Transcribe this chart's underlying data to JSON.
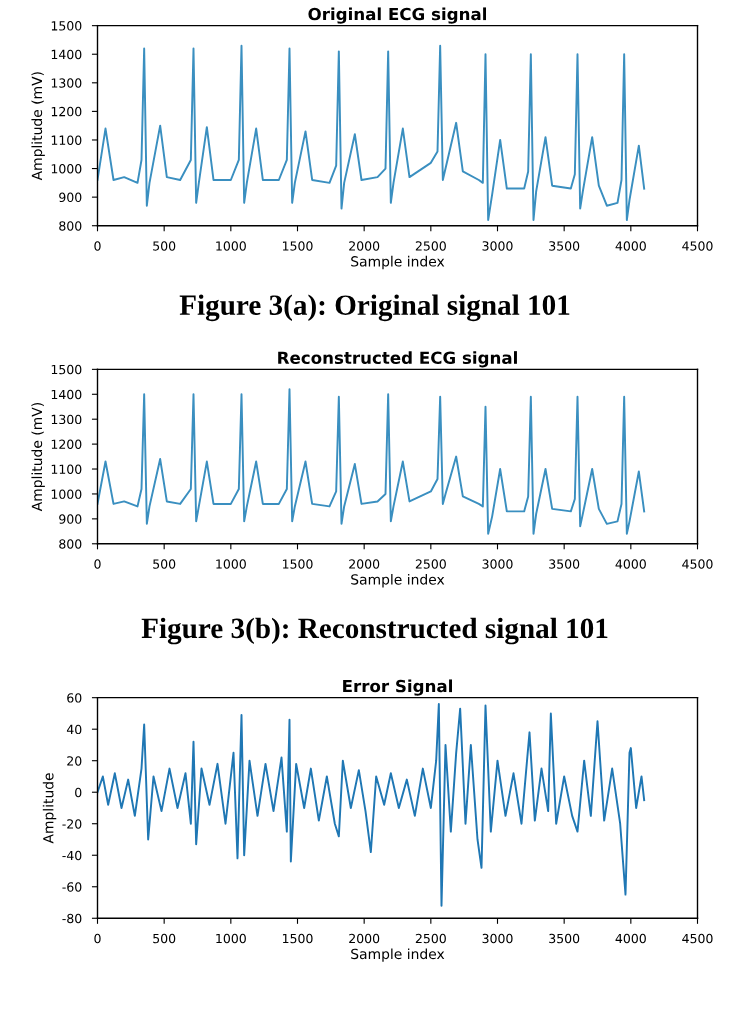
{
  "chart_data": [
    {
      "type": "line",
      "title": "Original ECG signal",
      "xlabel": "Sample index",
      "ylabel": "Amplitude (mV)",
      "annotations": [
        "Figure 3(a): Original signal 101"
      ],
      "xlim": [
        0,
        4500
      ],
      "xticks": [
        0,
        500,
        1000,
        1500,
        2000,
        2500,
        3000,
        3500,
        4000,
        4500
      ],
      "ylim": [
        800,
        1500
      ],
      "yticks": [
        800,
        900,
        1000,
        1100,
        1200,
        1300,
        1400,
        1500
      ],
      "grid": false,
      "series": [
        {
          "color": "#3a8fc0",
          "x": [
            0,
            60,
            120,
            200,
            300,
            330,
            350,
            370,
            390,
            470,
            520,
            620,
            700,
            720,
            740,
            760,
            820,
            870,
            1000,
            1060,
            1080,
            1100,
            1120,
            1190,
            1240,
            1360,
            1420,
            1440,
            1460,
            1480,
            1560,
            1610,
            1740,
            1790,
            1810,
            1830,
            1850,
            1930,
            1980,
            2100,
            2160,
            2180,
            2200,
            2220,
            2290,
            2340,
            2500,
            2550,
            2570,
            2590,
            2610,
            2690,
            2740,
            2860,
            2890,
            2910,
            2930,
            2960,
            3020,
            3070,
            3200,
            3230,
            3250,
            3270,
            3290,
            3360,
            3410,
            3550,
            3580,
            3600,
            3620,
            3640,
            3710,
            3760,
            3820,
            3900,
            3930,
            3950,
            3970,
            3990,
            4060,
            4100
          ],
          "values": [
            960,
            1140,
            960,
            970,
            950,
            1030,
            1420,
            870,
            950,
            1150,
            970,
            960,
            1030,
            1420,
            880,
            950,
            1145,
            960,
            960,
            1030,
            1430,
            880,
            950,
            1140,
            960,
            960,
            1030,
            1420,
            880,
            950,
            1130,
            960,
            950,
            1010,
            1410,
            860,
            950,
            1120,
            960,
            970,
            1000,
            1410,
            880,
            950,
            1140,
            970,
            1020,
            1060,
            1430,
            960,
            1000,
            1160,
            990,
            960,
            950,
            1400,
            820,
            910,
            1100,
            930,
            930,
            990,
            1400,
            820,
            920,
            1110,
            940,
            930,
            980,
            1400,
            860,
            920,
            1110,
            940,
            870,
            880,
            960,
            1400,
            820,
            890,
            1080,
            930
          ]
        }
      ]
    },
    {
      "type": "line",
      "title": "Reconstructed ECG signal",
      "xlabel": "Sample index",
      "ylabel": "Amplitude (mV)",
      "annotations": [
        "Figure 3(b): Reconstructed signal 101"
      ],
      "xlim": [
        0,
        4500
      ],
      "xticks": [
        0,
        500,
        1000,
        1500,
        2000,
        2500,
        3000,
        3500,
        4000,
        4500
      ],
      "ylim": [
        800,
        1500
      ],
      "yticks": [
        800,
        900,
        1000,
        1100,
        1200,
        1300,
        1400,
        1500
      ],
      "grid": false,
      "series": [
        {
          "color": "#3a8fc0",
          "x": [
            0,
            60,
            120,
            200,
            300,
            330,
            350,
            370,
            390,
            470,
            520,
            620,
            700,
            720,
            740,
            760,
            820,
            870,
            1000,
            1060,
            1080,
            1100,
            1120,
            1190,
            1240,
            1360,
            1420,
            1440,
            1460,
            1480,
            1560,
            1610,
            1740,
            1790,
            1810,
            1830,
            1850,
            1930,
            1980,
            2100,
            2160,
            2180,
            2200,
            2220,
            2290,
            2340,
            2500,
            2550,
            2570,
            2590,
            2610,
            2690,
            2740,
            2860,
            2890,
            2910,
            2930,
            2960,
            3020,
            3070,
            3200,
            3230,
            3250,
            3270,
            3290,
            3360,
            3410,
            3550,
            3580,
            3600,
            3620,
            3640,
            3710,
            3760,
            3820,
            3900,
            3930,
            3950,
            3970,
            3990,
            4060,
            4100
          ],
          "values": [
            960,
            1130,
            960,
            970,
            950,
            1020,
            1400,
            880,
            950,
            1140,
            970,
            960,
            1020,
            1400,
            890,
            950,
            1130,
            960,
            960,
            1020,
            1400,
            890,
            950,
            1130,
            960,
            960,
            1020,
            1420,
            890,
            950,
            1130,
            960,
            950,
            1010,
            1390,
            880,
            950,
            1120,
            960,
            970,
            1000,
            1400,
            890,
            950,
            1130,
            970,
            1010,
            1060,
            1390,
            960,
            1000,
            1150,
            990,
            960,
            950,
            1350,
            840,
            910,
            1100,
            930,
            930,
            990,
            1390,
            840,
            920,
            1100,
            940,
            930,
            980,
            1390,
            870,
            920,
            1100,
            940,
            880,
            890,
            960,
            1390,
            840,
            890,
            1090,
            930
          ]
        }
      ]
    },
    {
      "type": "line",
      "title": "Error Signal",
      "xlabel": "Sample index",
      "ylabel": "Amplitude",
      "xlim": [
        0,
        4500
      ],
      "xticks": [
        0,
        500,
        1000,
        1500,
        2000,
        2500,
        3000,
        3500,
        4000,
        4500
      ],
      "ylim": [
        -80,
        60
      ],
      "yticks": [
        -80,
        -60,
        -40,
        -20,
        0,
        20,
        40,
        60
      ],
      "grid": false,
      "series": [
        {
          "color": "#1f77b4",
          "x": [
            0,
            40,
            80,
            130,
            180,
            230,
            280,
            330,
            350,
            380,
            420,
            480,
            540,
            600,
            660,
            700,
            720,
            740,
            780,
            840,
            900,
            960,
            1020,
            1050,
            1080,
            1100,
            1140,
            1200,
            1260,
            1320,
            1380,
            1420,
            1440,
            1450,
            1490,
            1550,
            1600,
            1660,
            1720,
            1780,
            1810,
            1840,
            1900,
            1960,
            2010,
            2050,
            2090,
            2150,
            2200,
            2260,
            2320,
            2380,
            2440,
            2500,
            2540,
            2560,
            2580,
            2610,
            2650,
            2690,
            2720,
            2760,
            2800,
            2850,
            2880,
            2910,
            2950,
            3000,
            3060,
            3120,
            3180,
            3240,
            3280,
            3330,
            3380,
            3400,
            3440,
            3500,
            3560,
            3600,
            3650,
            3700,
            3750,
            3800,
            3860,
            3920,
            3960,
            3990,
            4000,
            4040,
            4080,
            4100
          ],
          "values": [
            0,
            10,
            -8,
            12,
            -10,
            8,
            -15,
            15,
            43,
            -30,
            10,
            -12,
            15,
            -10,
            12,
            -20,
            32,
            -33,
            15,
            -8,
            18,
            -20,
            25,
            -42,
            49,
            -40,
            20,
            -15,
            18,
            -12,
            22,
            -25,
            46,
            -44,
            18,
            -10,
            15,
            -18,
            10,
            -20,
            -28,
            20,
            -10,
            14,
            -12,
            -38,
            10,
            -8,
            12,
            -10,
            8,
            -15,
            15,
            -10,
            20,
            56,
            -72,
            30,
            -25,
            25,
            53,
            -20,
            30,
            -30,
            -48,
            55,
            -25,
            20,
            -15,
            12,
            -20,
            38,
            -18,
            15,
            -12,
            50,
            -20,
            10,
            -15,
            -25,
            20,
            -15,
            45,
            -18,
            15,
            -20,
            -65,
            25,
            28,
            -10,
            10,
            -5
          ]
        }
      ]
    }
  ]
}
